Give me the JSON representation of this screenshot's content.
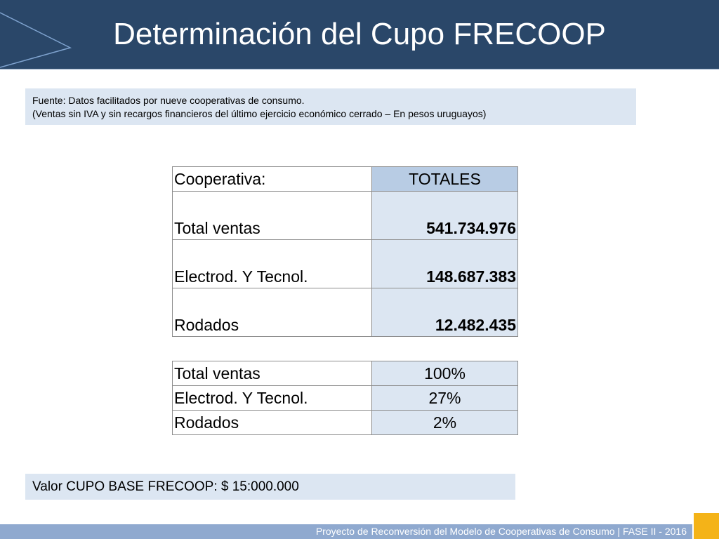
{
  "slide": {
    "title": "Determinación del Cupo FRECOOP"
  },
  "source": {
    "line1": "Fuente: Datos facilitados por nueve cooperativas de consumo.",
    "line2": "(Ventas sin IVA y sin recargos financieros del último ejercicio económico cerrado – En pesos uruguayos)"
  },
  "table_totals": {
    "header": {
      "label": "Cooperativa:",
      "value": "TOTALES"
    },
    "rows": [
      {
        "label": "Total ventas",
        "value": "541.734.976"
      },
      {
        "label": "Electrod. Y Tecnol.",
        "value": "148.687.383"
      },
      {
        "label": "Rodados",
        "value": "12.482.435"
      }
    ]
  },
  "table_percent": {
    "rows": [
      {
        "label": "Total ventas",
        "value": "100%"
      },
      {
        "label": "Electrod. Y Tecnol.",
        "value": "27%"
      },
      {
        "label": "Rodados",
        "value": "2%"
      }
    ]
  },
  "cupo": {
    "text": "Valor CUPO BASE FRECOOP: $ 15:000.000"
  },
  "footer": {
    "text": "Proyecto de Reconversión del Modelo de Cooperativas de Consumo | FASE II - 2016"
  },
  "colors": {
    "header_bg": "#2a4769",
    "box_bg": "#dce6f2",
    "table_header_bg": "#b8cce4",
    "footer_bg": "#8fa9cf",
    "accent_square": "#f4b318"
  }
}
